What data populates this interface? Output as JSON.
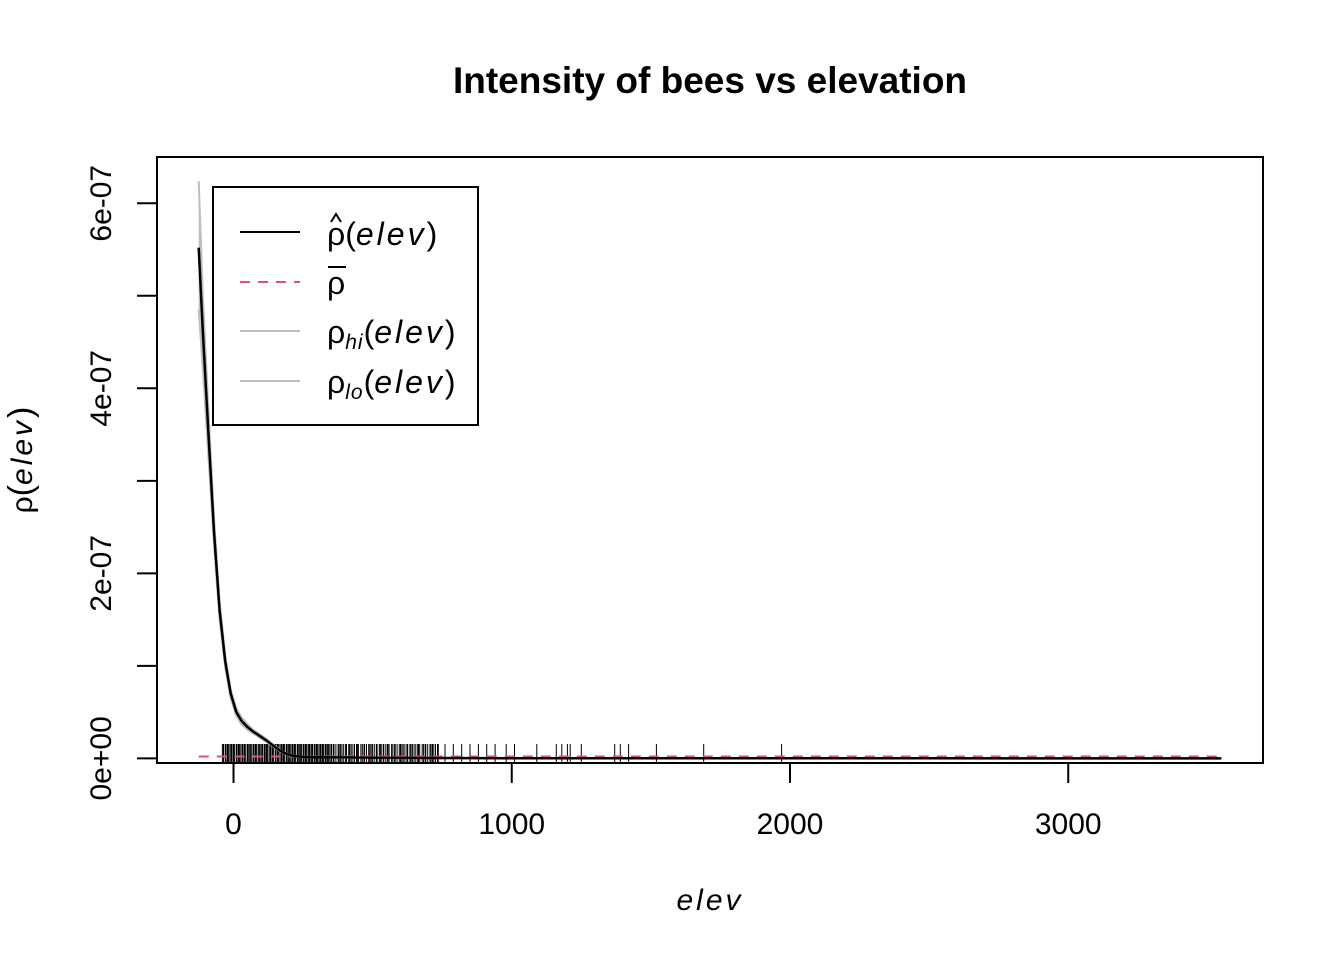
{
  "chart_data": {
    "type": "line",
    "title": "Intensity of bees vs elevation",
    "xlabel": "elev",
    "ylabel": "ρ(elev)",
    "ylabel_parts": {
      "symbol": "ρ",
      "open": "(",
      "var": "elev",
      "close": ")"
    },
    "xlim": [
      -275,
      3700
    ],
    "ylim": [
      -5e-09,
      6.5e-07
    ],
    "x_ticks": [
      0,
      1000,
      2000,
      3000
    ],
    "x_tick_labels": [
      "0",
      "1000",
      "2000",
      "3000"
    ],
    "y_ticks": [
      0,
      1e-07,
      2e-07,
      3e-07,
      4e-07,
      5e-07,
      6e-07
    ],
    "y_tick_labels": [
      "0e+00",
      "",
      "2e-07",
      "",
      "4e-07",
      "",
      "6e-07"
    ],
    "grid": false,
    "legend_position": "top-left",
    "legend": [
      {
        "symbol": "ρ",
        "accent": "hat",
        "sub": "",
        "open": "(",
        "var": "elev",
        "close": ")",
        "color": "#000000",
        "dash": "solid"
      },
      {
        "symbol": "ρ",
        "accent": "bar",
        "sub": "",
        "open": "",
        "var": "",
        "close": "",
        "color": "#DF536B",
        "dash": "dashed"
      },
      {
        "symbol": "ρ",
        "accent": "",
        "sub": "hi",
        "open": "(",
        "var": "elev",
        "close": ")",
        "color": "#BEBEBE",
        "dash": "solid"
      },
      {
        "symbol": "ρ",
        "accent": "",
        "sub": "lo",
        "open": "(",
        "var": "elev",
        "close": ")",
        "color": "#BEBEBE",
        "dash": "solid"
      }
    ],
    "x": [
      -125,
      -110,
      -90,
      -70,
      -50,
      -30,
      -10,
      10,
      30,
      50,
      70,
      90,
      120,
      150,
      180,
      210,
      250,
      300,
      400,
      500,
      700,
      1000,
      1500,
      2000,
      2500,
      3000,
      3550
    ],
    "series": [
      {
        "id": "rho_hat",
        "color": "#000000",
        "values": [
          5.52e-07,
          4.6e-07,
          3.5e-07,
          2.45e-07,
          1.6e-07,
          1.05e-07,
          7e-08,
          5e-08,
          4e-08,
          3.4e-08,
          2.9e-08,
          2.5e-08,
          1.9e-08,
          1.2e-08,
          6e-09,
          3e-09,
          1.5e-09,
          1.2e-09,
          1e-09,
          7e-10,
          4e-10,
          2e-10,
          1e-10,
          5e-11,
          3e-11,
          2e-11,
          1e-11
        ]
      },
      {
        "id": "rho_hi",
        "color": "#BEBEBE",
        "values": [
          6.24e-07,
          5e-07,
          3.75e-07,
          2.6e-07,
          1.7e-07,
          1.12e-07,
          7.5e-08,
          5.4e-08,
          4.4e-08,
          3.7e-08,
          3.1e-08,
          2.7e-08,
          2.05e-08,
          1.3e-08,
          6.6e-09,
          3.4e-09,
          1.8e-09,
          1.5e-09,
          1.3e-09,
          1e-09,
          6e-10,
          3.5e-10,
          2e-10,
          1.5e-10,
          1.2e-10,
          1e-10,
          8e-11
        ]
      },
      {
        "id": "rho_lo",
        "color": "#BEBEBE",
        "values": [
          4.85e-07,
          4.2e-07,
          3.25e-07,
          2.3e-07,
          1.5e-07,
          9.8e-08,
          6.5e-08,
          4.6e-08,
          3.6e-08,
          3.1e-08,
          2.7e-08,
          2.3e-08,
          1.75e-08,
          1.1e-08,
          5.4e-09,
          2.6e-09,
          1.2e-09,
          9e-10,
          7e-10,
          4e-10,
          2e-10,
          5e-11,
          0.0,
          0.0,
          0.0,
          0.0,
          0.0
        ]
      }
    ],
    "reference_line": {
      "id": "rho_bar",
      "value": 2e-09,
      "x_from": -125,
      "x_to": 3550,
      "color": "#DF536B"
    },
    "rug": {
      "dense_from": -40,
      "dense_to": 740,
      "extra": [
        760,
        790,
        820,
        850,
        880,
        910,
        940,
        980,
        1010,
        1090,
        1160,
        1180,
        1200,
        1210,
        1250,
        1370,
        1390,
        1420,
        1520,
        1690,
        1970
      ]
    }
  }
}
